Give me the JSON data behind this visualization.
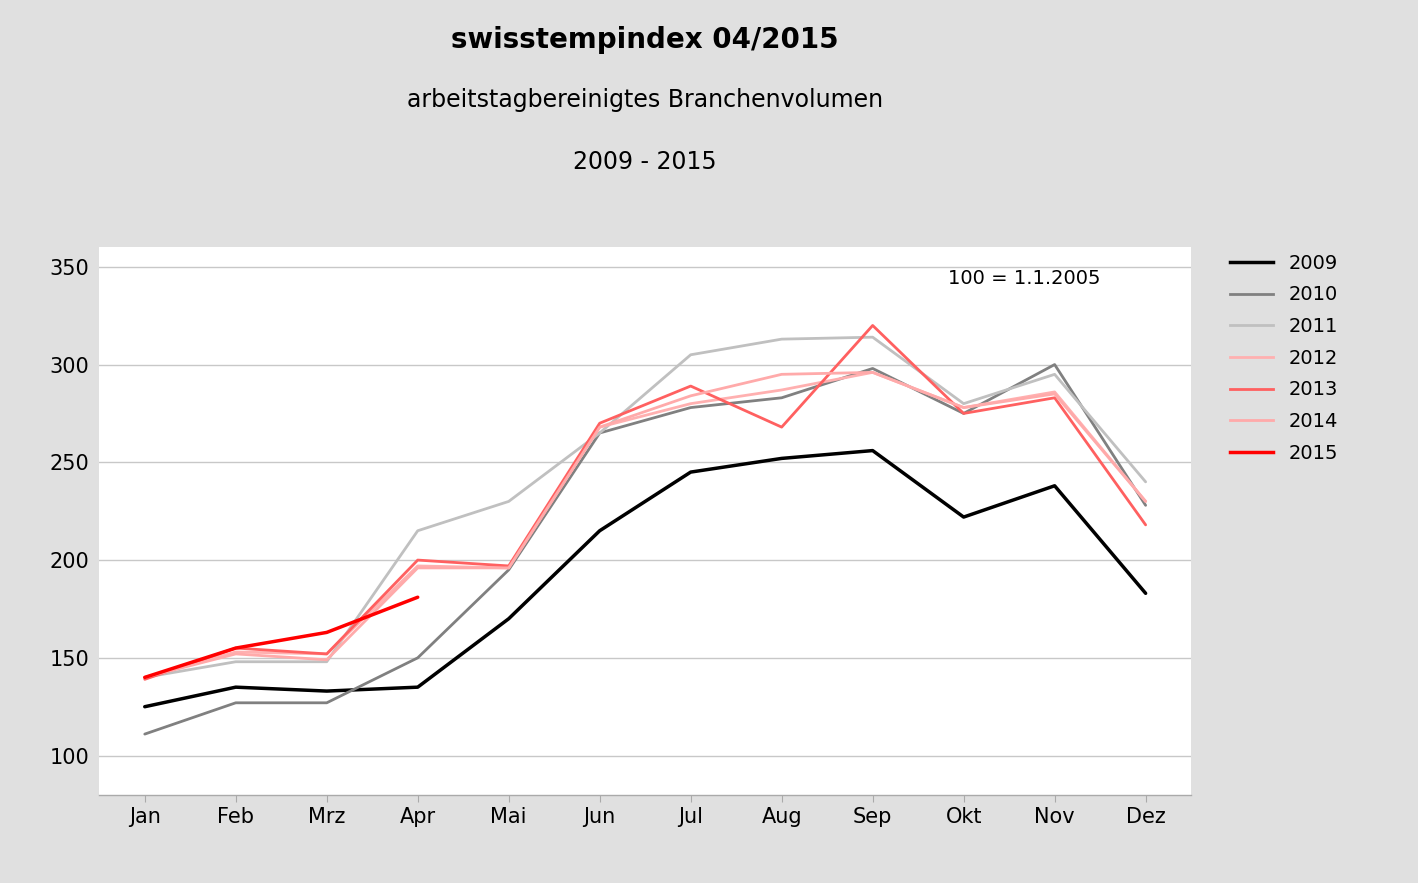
{
  "title1": "swisstempindex 04/2015",
  "title2": "arbeitstagbereinigtes Branchenvolumen",
  "title3": "2009 - 2015",
  "annotation": "100 = 1.1.2005",
  "months": [
    "Jan",
    "Feb",
    "Mrz",
    "Apr",
    "Mai",
    "Jun",
    "Jul",
    "Aug",
    "Sep",
    "Okt",
    "Nov",
    "Dez"
  ],
  "series": {
    "2009": {
      "color": "#000000",
      "linewidth": 2.5,
      "data": [
        125,
        135,
        133,
        135,
        170,
        215,
        245,
        252,
        256,
        222,
        238,
        183
      ]
    },
    "2010": {
      "color": "#808080",
      "linewidth": 2.0,
      "data": [
        111,
        127,
        127,
        150,
        195,
        265,
        278,
        283,
        298,
        275,
        300,
        228
      ]
    },
    "2011": {
      "color": "#c0c0c0",
      "linewidth": 2.0,
      "data": [
        140,
        148,
        148,
        215,
        230,
        265,
        305,
        313,
        314,
        280,
        295,
        240
      ]
    },
    "2012": {
      "color": "#ffb0b0",
      "linewidth": 2.0,
      "data": [
        140,
        153,
        152,
        197,
        196,
        268,
        280,
        287,
        296,
        278,
        286,
        230
      ]
    },
    "2013": {
      "color": "#ff6060",
      "linewidth": 2.0,
      "data": [
        139,
        155,
        152,
        200,
        197,
        270,
        289,
        268,
        320,
        275,
        283,
        218
      ]
    },
    "2014": {
      "color": "#ffaaaa",
      "linewidth": 2.0,
      "data": [
        140,
        152,
        149,
        196,
        196,
        268,
        284,
        295,
        296,
        278,
        285,
        230
      ]
    },
    "2015": {
      "color": "#ff0000",
      "linewidth": 2.5,
      "data": [
        140,
        155,
        163,
        181,
        null,
        null,
        null,
        null,
        null,
        null,
        null,
        null
      ]
    }
  },
  "series_order": [
    "2009",
    "2010",
    "2011",
    "2012",
    "2013",
    "2014",
    "2015"
  ],
  "ylim": [
    80,
    360
  ],
  "yticks": [
    100,
    150,
    200,
    250,
    300,
    350
  ],
  "background_color": "#e0e0e0",
  "plot_background": "#ffffff",
  "grid_color": "#c8c8c8",
  "title1_fontsize": 20,
  "title2_fontsize": 17,
  "title3_fontsize": 17,
  "tick_fontsize": 15,
  "legend_fontsize": 14,
  "annotation_fontsize": 14
}
